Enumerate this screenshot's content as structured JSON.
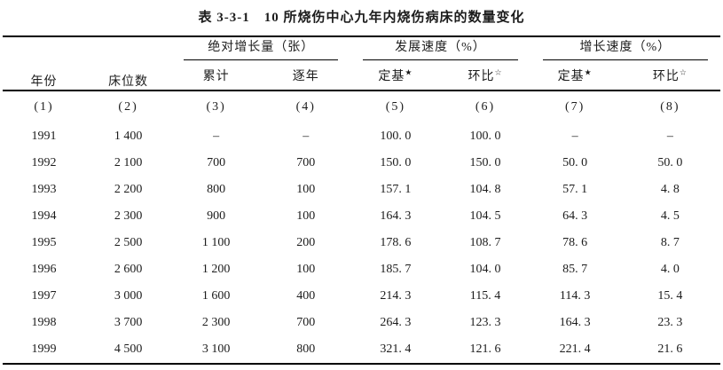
{
  "title": {
    "label": "表 3-3-1",
    "text": "10 所烧伤中心九年内烧伤病床的数量变化"
  },
  "table": {
    "header": {
      "year": "年份",
      "beds": "床位数",
      "groups": [
        {
          "label": "绝对增长量（张）",
          "sub": [
            {
              "text": "累计",
              "mark": ""
            },
            {
              "text": "逐年",
              "mark": ""
            }
          ]
        },
        {
          "label": "发展速度（%）",
          "sub": [
            {
              "text": "定基",
              "mark": "★"
            },
            {
              "text": "环比",
              "mark": "☆"
            }
          ]
        },
        {
          "label": "增长速度（%）",
          "sub": [
            {
              "text": "定基",
              "mark": "★"
            },
            {
              "text": "环比",
              "mark": "☆"
            }
          ]
        }
      ]
    },
    "col_numbers": [
      "(1)",
      "(2)",
      "(3)",
      "(4)",
      "(5)",
      "(6)",
      "(7)",
      "(8)"
    ],
    "rows": [
      [
        "1991",
        "1 400",
        "–",
        "–",
        "100. 0",
        "100. 0",
        "–",
        "–"
      ],
      [
        "1992",
        "2 100",
        "700",
        "700",
        "150. 0",
        "150. 0",
        "50. 0",
        "50. 0"
      ],
      [
        "1993",
        "2 200",
        "800",
        "100",
        "157. 1",
        "104. 8",
        "57. 1",
        "4. 8"
      ],
      [
        "1994",
        "2 300",
        "900",
        "100",
        "164. 3",
        "104. 5",
        "64. 3",
        "4. 5"
      ],
      [
        "1995",
        "2 500",
        "1 100",
        "200",
        "178. 6",
        "108. 7",
        "78. 6",
        "8. 7"
      ],
      [
        "1996",
        "2 600",
        "1 200",
        "100",
        "185. 7",
        "104. 0",
        "85. 7",
        "4. 0"
      ],
      [
        "1997",
        "3 000",
        "1 600",
        "400",
        "214. 3",
        "115. 4",
        "114. 3",
        "15. 4"
      ],
      [
        "1998",
        "3 700",
        "2 300",
        "700",
        "264. 3",
        "123. 3",
        "164. 3",
        "23. 3"
      ],
      [
        "1999",
        "4 500",
        "3 100",
        "800",
        "321. 4",
        "121. 6",
        "221. 4",
        "21. 6"
      ]
    ]
  },
  "colors": {
    "text": "#1c1c1c",
    "rule": "#000000",
    "background": "#ffffff"
  }
}
